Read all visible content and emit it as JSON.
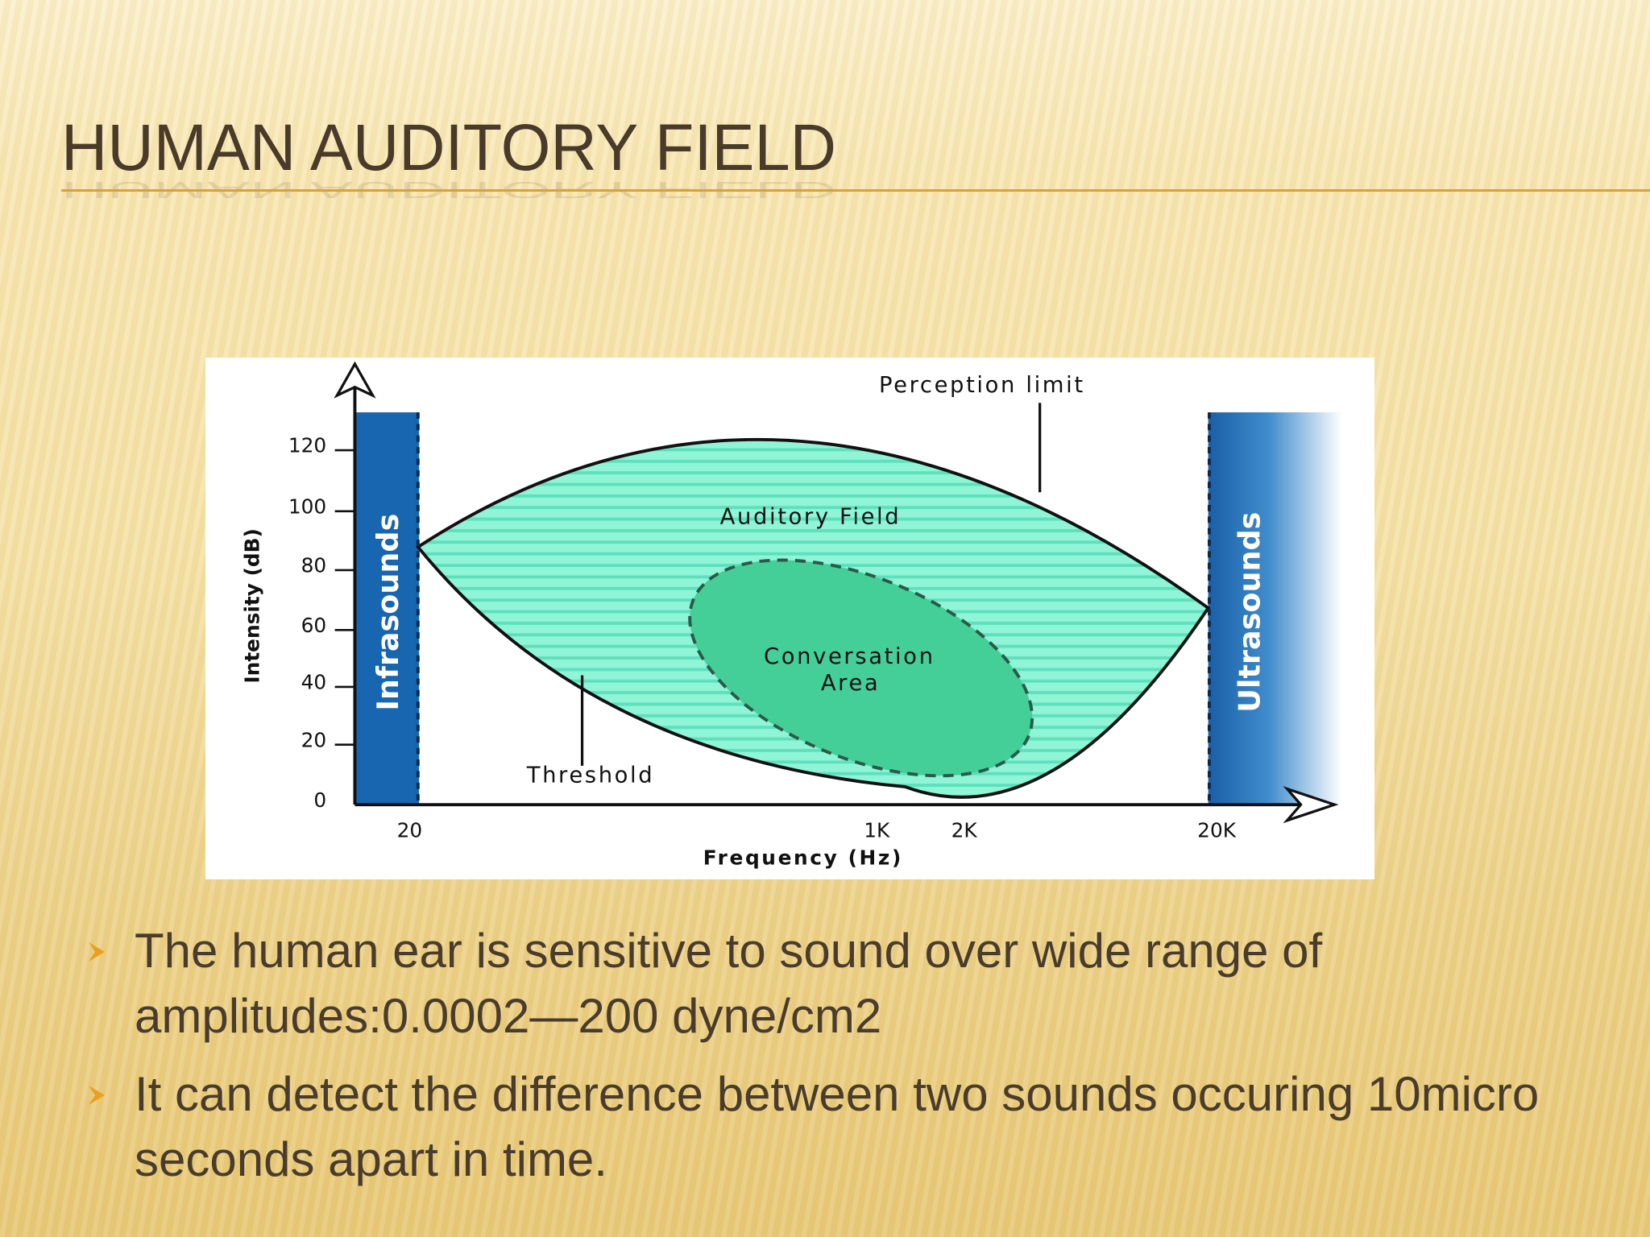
{
  "header": {
    "title": "HUMAN AUDITORY FIELD"
  },
  "figure": {
    "y_axis_label": "Intensity (dB)",
    "x_axis_label": "Frequency (Hz)",
    "y_tick_labels": [
      "120",
      "100",
      "80",
      "60",
      "40",
      "20",
      "0"
    ],
    "x_tick_labels": [
      "20",
      "1K",
      "2K",
      "20K"
    ],
    "perception_label": "Perception limit",
    "field_label": "Auditory Field",
    "conversation_label": [
      "Conversation",
      "Area"
    ],
    "threshold_label": "Threshold",
    "infrasound_label": "Infrasounds",
    "ultrasound_label": "Ultrasounds"
  },
  "bullets": [
    "The human ear is sensitive to sound over wide range of amplitudes:0.0002—200 dyne/cm2",
    "It can detect the difference between two sounds occuring 10micro seconds apart in time."
  ]
}
